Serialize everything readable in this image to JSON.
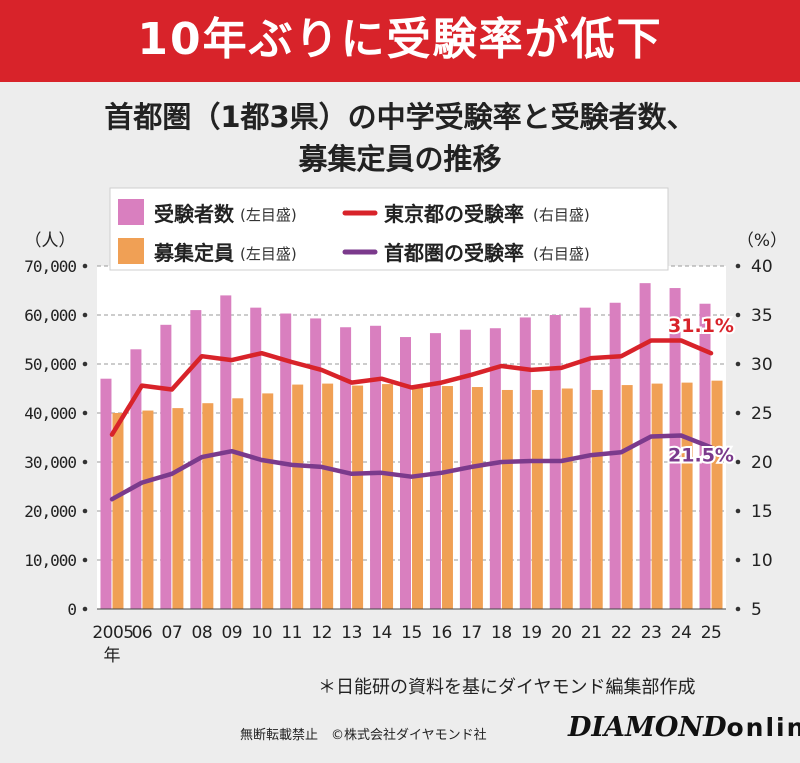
{
  "banner": {
    "text": "10年ぶりに受験率が低下"
  },
  "title": {
    "line1": "首都圏（1都3県）の中学受験率と受験者数、",
    "line2": "募集定員の推移"
  },
  "legend": {
    "items": [
      {
        "key": "examinees",
        "label": "受験者数",
        "note": "(左目盛)",
        "kind": "bar",
        "color": "#d97fbf"
      },
      {
        "key": "tokyo",
        "label": "東京都の受験率",
        "note": "(右目盛)",
        "kind": "line",
        "color": "#d8232a"
      },
      {
        "key": "capacity",
        "label": "募集定員",
        "note": "(左目盛)",
        "kind": "bar",
        "color": "#f0a055"
      },
      {
        "key": "metro",
        "label": "首都圏の受験率",
        "note": "(右目盛)",
        "kind": "line",
        "color": "#7b3a8c"
      }
    ]
  },
  "chart_data": {
    "type": "bar",
    "categories": [
      "2005",
      "06",
      "07",
      "08",
      "09",
      "10",
      "11",
      "12",
      "13",
      "14",
      "15",
      "16",
      "17",
      "18",
      "19",
      "20",
      "21",
      "22",
      "23",
      "24",
      "25"
    ],
    "x_unit": "年",
    "left_axis": {
      "unit": "（人）",
      "min": 0,
      "max": 70000,
      "ticks": [
        0,
        10000,
        20000,
        30000,
        40000,
        50000,
        60000,
        70000
      ],
      "tick_labels": [
        "0",
        "10,000",
        "20,000",
        "30,000",
        "40,000",
        "50,000",
        "60,000",
        "70,000"
      ]
    },
    "right_axis": {
      "unit": "（%）",
      "min": 5,
      "max": 40,
      "ticks": [
        5,
        10,
        15,
        20,
        25,
        30,
        35,
        40
      ],
      "tick_labels": [
        "5",
        "10",
        "15",
        "20",
        "25",
        "30",
        "35",
        "40"
      ]
    },
    "grid": true,
    "series": [
      {
        "name": "受験者数",
        "type": "bar",
        "axis": "left",
        "color": "#d97fbf",
        "values": [
          47000,
          53000,
          58000,
          61000,
          64000,
          61500,
          60300,
          59300,
          57500,
          57800,
          55500,
          56300,
          57000,
          57300,
          59500,
          60000,
          61500,
          62500,
          66500,
          65500,
          62300
        ]
      },
      {
        "name": "募集定員",
        "type": "bar",
        "axis": "left",
        "color": "#f0a055",
        "values": [
          40000,
          40500,
          41000,
          42000,
          43000,
          44000,
          45800,
          46000,
          45600,
          45900,
          45700,
          45500,
          45300,
          44700,
          44700,
          45000,
          44700,
          45700,
          46000,
          46200,
          46600
        ]
      },
      {
        "name": "東京都の受験率",
        "type": "line",
        "axis": "right",
        "color": "#d8232a",
        "values": [
          22.8,
          27.8,
          27.4,
          30.8,
          30.4,
          31.1,
          30.2,
          29.4,
          28.1,
          28.5,
          27.6,
          28.1,
          28.9,
          29.8,
          29.4,
          29.6,
          30.6,
          30.8,
          32.4,
          32.4,
          31.1
        ],
        "end_label": "31.1%"
      },
      {
        "name": "首都圏の受験率",
        "type": "line",
        "axis": "right",
        "color": "#7b3a8c",
        "values": [
          16.2,
          17.9,
          18.8,
          20.5,
          21.1,
          20.2,
          19.7,
          19.5,
          18.8,
          18.9,
          18.5,
          18.9,
          19.5,
          20.0,
          20.1,
          20.1,
          20.7,
          21.0,
          22.6,
          22.7,
          21.5
        ],
        "end_label": "21.5%"
      }
    ]
  },
  "footer": {
    "note": "＊日能研の資料を基にダイヤモンド編集部作成",
    "copyright": "無断転載禁止　©株式会社ダイヤモンド社",
    "brand_main": "DIAMOND",
    "brand_sub": "online"
  }
}
